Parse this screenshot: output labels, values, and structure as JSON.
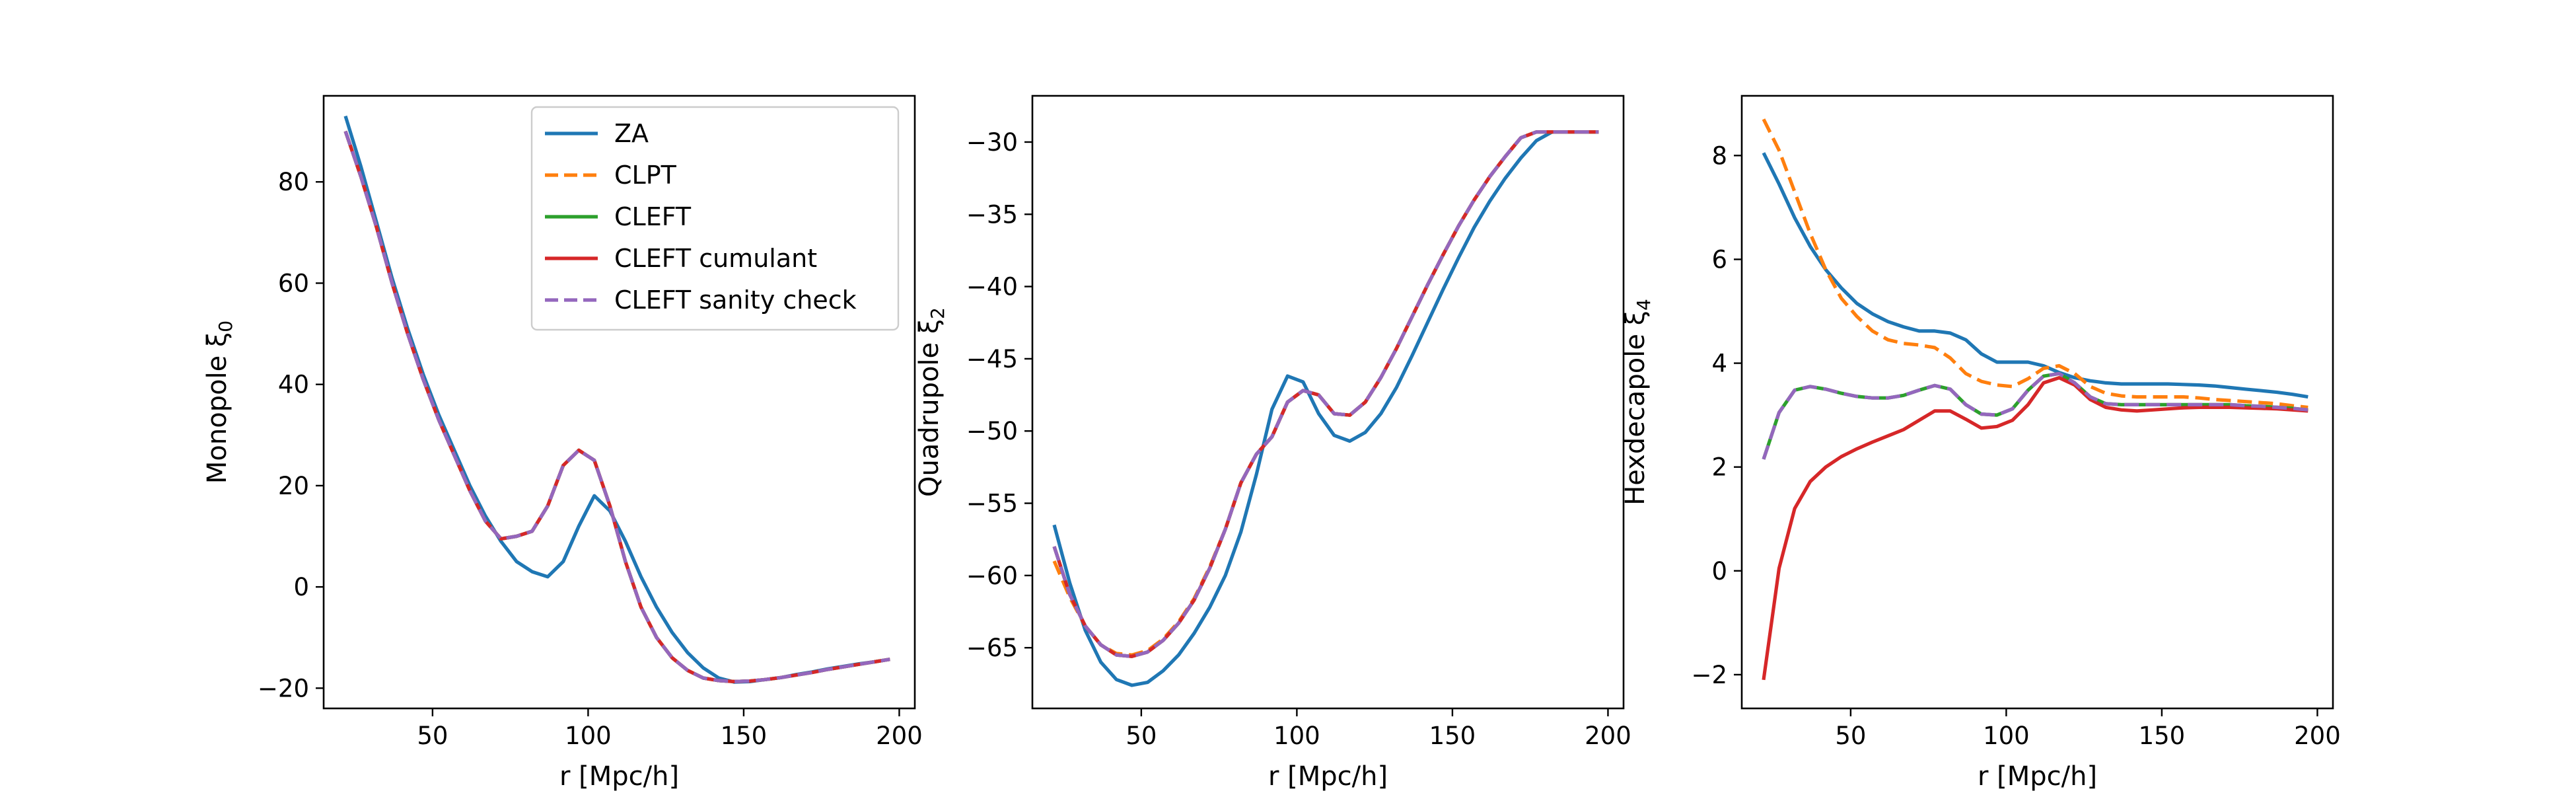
{
  "chart_data": [
    {
      "type": "line",
      "xlabel": "r [Mpc/h]",
      "ylabel": "Monopole ξ",
      "ylabel_sub": "0",
      "xlim": [
        15,
        205
      ],
      "ylim": [
        -24,
        97
      ],
      "xticks": [
        50,
        100,
        150,
        200
      ],
      "yticks": [
        -20,
        0,
        20,
        40,
        60,
        80
      ],
      "legend": "upper right",
      "x": [
        22,
        27,
        32,
        37,
        42,
        47,
        52,
        57,
        62,
        67,
        72,
        77,
        82,
        87,
        92,
        97,
        102,
        107,
        112,
        117,
        122,
        127,
        132,
        137,
        142,
        147,
        152,
        157,
        162,
        167,
        172,
        177,
        182,
        187,
        192,
        197
      ],
      "series": [
        {
          "name": "ZA",
          "color": "#1f77b4",
          "dash": "solid",
          "values": [
            93,
            83,
            72,
            61,
            51,
            42,
            34,
            27,
            20,
            14,
            9,
            5,
            3,
            2,
            5,
            12,
            18,
            15,
            9,
            2,
            -4,
            -9,
            -13,
            -16,
            -18,
            -18.8,
            -18.7,
            -18.3,
            -17.9,
            -17.3,
            -16.8,
            -16.2,
            -15.7,
            -15.2,
            -14.8,
            -14.3
          ]
        },
        {
          "name": "CLPT",
          "color": "#ff7f0e",
          "dash": "dashed",
          "values": [
            90,
            81,
            71,
            60,
            50,
            41,
            33,
            26,
            19,
            13,
            9.5,
            10,
            11,
            16,
            24,
            27,
            25,
            16,
            5,
            -4,
            -10,
            -14,
            -16.5,
            -18,
            -18.5,
            -18.7,
            -18.6,
            -18.3,
            -17.9,
            -17.4,
            -16.9,
            -16.3,
            -15.8,
            -15.3,
            -14.8,
            -14.3
          ]
        },
        {
          "name": "CLEFT",
          "color": "#2ca02c",
          "dash": "solid",
          "values": [
            90,
            81,
            71,
            60,
            50,
            41,
            33,
            26,
            19,
            13,
            9.5,
            10,
            11,
            16,
            24,
            27,
            25,
            16,
            5,
            -4,
            -10,
            -14,
            -16.5,
            -18,
            -18.5,
            -18.7,
            -18.6,
            -18.3,
            -17.9,
            -17.4,
            -16.9,
            -16.3,
            -15.8,
            -15.3,
            -14.8,
            -14.3
          ]
        },
        {
          "name": "CLEFT cumulant",
          "color": "#d62728",
          "dash": "solid",
          "values": [
            90,
            81,
            71,
            60,
            50,
            41,
            33,
            26,
            19,
            13,
            9.5,
            10,
            11,
            16,
            24,
            27,
            25,
            16,
            5,
            -4,
            -10,
            -14,
            -16.5,
            -18,
            -18.5,
            -18.7,
            -18.6,
            -18.3,
            -17.9,
            -17.4,
            -16.9,
            -16.3,
            -15.8,
            -15.3,
            -14.8,
            -14.3
          ]
        },
        {
          "name": "CLEFT sanity check",
          "color": "#9467bd",
          "dash": "dashed",
          "values": [
            90,
            81,
            71,
            60,
            50,
            41,
            33,
            26,
            19,
            13,
            9.5,
            10,
            11,
            16,
            24,
            27,
            25,
            16,
            5,
            -4,
            -10,
            -14,
            -16.5,
            -18,
            -18.5,
            -18.7,
            -18.6,
            -18.3,
            -17.9,
            -17.4,
            -16.9,
            -16.3,
            -15.8,
            -15.3,
            -14.8,
            -14.3
          ]
        }
      ]
    },
    {
      "type": "line",
      "xlabel": "r [Mpc/h]",
      "ylabel": "Quadrupole ξ",
      "ylabel_sub": "2",
      "xlim": [
        15,
        205
      ],
      "ylim": [
        -69.2,
        -26.8
      ],
      "xticks": [
        50,
        100,
        150,
        200
      ],
      "yticks": [
        -65,
        -60,
        -55,
        -50,
        -45,
        -40,
        -35,
        -30
      ],
      "x": [
        22,
        27,
        32,
        37,
        42,
        47,
        52,
        57,
        62,
        67,
        72,
        77,
        82,
        87,
        92,
        97,
        102,
        107,
        112,
        117,
        122,
        127,
        132,
        137,
        142,
        147,
        152,
        157,
        162,
        167,
        172,
        177,
        182,
        187,
        192,
        197
      ],
      "series": [
        {
          "name": "ZA",
          "color": "#1f77b4",
          "dash": "solid",
          "values": [
            -56.5,
            -60.5,
            -63.8,
            -66,
            -67.2,
            -67.6,
            -67.4,
            -66.6,
            -65.5,
            -64,
            -62.2,
            -60,
            -57,
            -53,
            -48.5,
            -46.2,
            -46.6,
            -48.8,
            -50.3,
            -50.7,
            -50.1,
            -48.8,
            -47,
            -44.8,
            -42.5,
            -40.2,
            -38,
            -35.9,
            -34.1,
            -32.5,
            -31.1,
            -29.9,
            -29.3,
            -29.3,
            -29.3,
            -29.3
          ]
        },
        {
          "name": "CLPT",
          "color": "#ff7f0e",
          "dash": "dashed",
          "values": [
            -59,
            -61.5,
            -63.5,
            -64.8,
            -65.4,
            -65.5,
            -65.2,
            -64.4,
            -63.2,
            -61.6,
            -59.4,
            -56.8,
            -53.6,
            -51.6,
            -50.4,
            -48,
            -47.2,
            -47.5,
            -48.8,
            -48.9,
            -48,
            -46.3,
            -44.3,
            -42.1,
            -39.9,
            -37.8,
            -35.8,
            -34,
            -32.4,
            -31,
            -29.7,
            -29.3,
            -29.3,
            -29.3,
            -29.3,
            -29.3
          ]
        },
        {
          "name": "CLEFT",
          "color": "#2ca02c",
          "dash": "solid",
          "values": [
            -58,
            -61.3,
            -63.5,
            -64.8,
            -65.5,
            -65.6,
            -65.3,
            -64.5,
            -63.3,
            -61.7,
            -59.5,
            -56.8,
            -53.6,
            -51.6,
            -50.4,
            -48,
            -47.2,
            -47.5,
            -48.8,
            -48.9,
            -48,
            -46.3,
            -44.3,
            -42.1,
            -39.9,
            -37.8,
            -35.8,
            -34,
            -32.4,
            -31,
            -29.7,
            -29.3,
            -29.3,
            -29.3,
            -29.3,
            -29.3
          ]
        },
        {
          "name": "CLEFT cumulant",
          "color": "#d62728",
          "dash": "solid",
          "values": [
            -58,
            -61.3,
            -63.5,
            -64.8,
            -65.5,
            -65.6,
            -65.3,
            -64.5,
            -63.3,
            -61.7,
            -59.5,
            -56.8,
            -53.6,
            -51.6,
            -50.4,
            -48,
            -47.2,
            -47.5,
            -48.8,
            -48.9,
            -48,
            -46.3,
            -44.3,
            -42.1,
            -39.9,
            -37.8,
            -35.8,
            -34,
            -32.4,
            -31,
            -29.7,
            -29.3,
            -29.3,
            -29.3,
            -29.3,
            -29.3
          ]
        },
        {
          "name": "CLEFT sanity check",
          "color": "#9467bd",
          "dash": "dashed",
          "values": [
            -58,
            -61.3,
            -63.5,
            -64.8,
            -65.5,
            -65.6,
            -65.3,
            -64.5,
            -63.3,
            -61.7,
            -59.5,
            -56.8,
            -53.6,
            -51.6,
            -50.4,
            -48,
            -47.2,
            -47.5,
            -48.8,
            -48.9,
            -48,
            -46.3,
            -44.3,
            -42.1,
            -39.9,
            -37.8,
            -35.8,
            -34,
            -32.4,
            -31,
            -29.7,
            -29.3,
            -29.3,
            -29.3,
            -29.3,
            -29.3
          ]
        }
      ]
    },
    {
      "type": "line",
      "xlabel": "r [Mpc/h]",
      "ylabel": "Hexdecapole ξ",
      "ylabel_sub": "4",
      "xlim": [
        15,
        205
      ],
      "ylim": [
        -2.65,
        9.15
      ],
      "xticks": [
        50,
        100,
        150,
        200
      ],
      "yticks": [
        -2,
        0,
        2,
        4,
        6,
        8
      ],
      "x": [
        22,
        27,
        32,
        37,
        42,
        47,
        52,
        57,
        62,
        67,
        72,
        77,
        82,
        87,
        92,
        97,
        102,
        107,
        112,
        117,
        122,
        127,
        132,
        137,
        142,
        147,
        152,
        157,
        162,
        167,
        172,
        177,
        182,
        187,
        192,
        197
      ],
      "series": [
        {
          "name": "ZA",
          "color": "#1f77b4",
          "dash": "solid",
          "values": [
            8.05,
            7.45,
            6.8,
            6.25,
            5.8,
            5.45,
            5.15,
            4.95,
            4.8,
            4.7,
            4.62,
            4.62,
            4.58,
            4.45,
            4.18,
            4.02,
            4.02,
            4.02,
            3.95,
            3.82,
            3.72,
            3.66,
            3.62,
            3.6,
            3.6,
            3.6,
            3.6,
            3.59,
            3.58,
            3.56,
            3.53,
            3.5,
            3.47,
            3.44,
            3.4,
            3.35
          ]
        },
        {
          "name": "CLPT",
          "color": "#ff7f0e",
          "dash": "dashed",
          "values": [
            8.7,
            8.1,
            7.3,
            6.5,
            5.8,
            5.25,
            4.9,
            4.62,
            4.45,
            4.38,
            4.35,
            4.3,
            4.1,
            3.8,
            3.65,
            3.58,
            3.55,
            3.7,
            3.9,
            3.95,
            3.8,
            3.55,
            3.42,
            3.37,
            3.35,
            3.35,
            3.35,
            3.35,
            3.33,
            3.3,
            3.28,
            3.26,
            3.24,
            3.22,
            3.18,
            3.15
          ]
        },
        {
          "name": "CLEFT",
          "color": "#2ca02c",
          "dash": "solid",
          "values": [
            2.15,
            3.05,
            3.48,
            3.55,
            3.5,
            3.42,
            3.36,
            3.33,
            3.33,
            3.38,
            3.48,
            3.57,
            3.5,
            3.2,
            3.02,
            3,
            3.12,
            3.48,
            3.75,
            3.8,
            3.62,
            3.35,
            3.22,
            3.2,
            3.2,
            3.2,
            3.2,
            3.2,
            3.2,
            3.2,
            3.2,
            3.18,
            3.17,
            3.15,
            3.13,
            3.1
          ]
        },
        {
          "name": "CLEFT cumulant",
          "color": "#d62728",
          "dash": "solid",
          "values": [
            -2.1,
            0.05,
            1.2,
            1.72,
            2,
            2.2,
            2.35,
            2.48,
            2.6,
            2.72,
            2.9,
            3.08,
            3.08,
            2.92,
            2.75,
            2.78,
            2.9,
            3.2,
            3.62,
            3.72,
            3.58,
            3.3,
            3.15,
            3.1,
            3.08,
            3.1,
            3.12,
            3.14,
            3.15,
            3.15,
            3.15,
            3.14,
            3.13,
            3.12,
            3.1,
            3.08
          ]
        },
        {
          "name": "CLEFT sanity check",
          "color": "#9467bd",
          "dash": "dashed",
          "values": [
            2.15,
            3.05,
            3.48,
            3.55,
            3.5,
            3.42,
            3.36,
            3.33,
            3.33,
            3.38,
            3.48,
            3.57,
            3.5,
            3.2,
            3.02,
            3,
            3.12,
            3.48,
            3.75,
            3.8,
            3.62,
            3.35,
            3.22,
            3.2,
            3.2,
            3.2,
            3.2,
            3.2,
            3.2,
            3.2,
            3.2,
            3.18,
            3.17,
            3.15,
            3.13,
            3.1
          ]
        }
      ]
    }
  ]
}
